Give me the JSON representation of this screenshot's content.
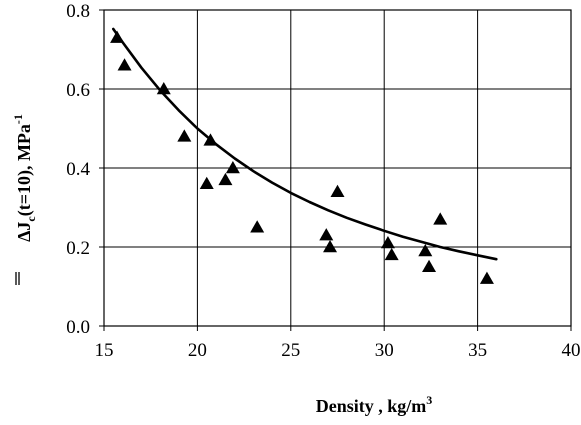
{
  "chart_data": {
    "type": "scatter",
    "title": "",
    "xlabel": {
      "main": "Density , kg/m",
      "superscript": "3"
    },
    "ylabel": {
      "prefix": "ΔJ",
      "subscript": "c",
      "middle": "(t=10), MPa",
      "superscript": "-1"
    },
    "xlim": [
      15,
      40
    ],
    "ylim": [
      0.0,
      0.8
    ],
    "xticks": [
      "15",
      "20",
      "25",
      "30",
      "35",
      "40"
    ],
    "yticks": [
      "0.0",
      "0.2",
      "0.4",
      "0.6",
      "0.8"
    ],
    "grid": true,
    "legend": "none",
    "marker": "filled-triangle",
    "color": "#000000",
    "points": [
      {
        "x": 15.7,
        "y": 0.73
      },
      {
        "x": 16.1,
        "y": 0.66
      },
      {
        "x": 18.2,
        "y": 0.6
      },
      {
        "x": 19.3,
        "y": 0.48
      },
      {
        "x": 20.7,
        "y": 0.47
      },
      {
        "x": 20.5,
        "y": 0.36
      },
      {
        "x": 21.5,
        "y": 0.37
      },
      {
        "x": 21.9,
        "y": 0.4
      },
      {
        "x": 23.2,
        "y": 0.25
      },
      {
        "x": 26.9,
        "y": 0.23
      },
      {
        "x": 27.1,
        "y": 0.2
      },
      {
        "x": 27.5,
        "y": 0.34
      },
      {
        "x": 30.2,
        "y": 0.21
      },
      {
        "x": 30.4,
        "y": 0.18
      },
      {
        "x": 32.2,
        "y": 0.19
      },
      {
        "x": 32.4,
        "y": 0.15
      },
      {
        "x": 33.0,
        "y": 0.27
      },
      {
        "x": 35.5,
        "y": 0.12
      }
    ],
    "trend": {
      "type": "power-fit",
      "x": [
        15.5,
        16,
        17,
        18,
        19,
        20,
        21,
        22,
        23,
        24,
        25,
        26,
        27,
        28,
        29,
        30,
        31,
        32,
        33,
        34,
        35,
        36
      ],
      "y": [
        0.752,
        0.718,
        0.654,
        0.597,
        0.546,
        0.5,
        0.46,
        0.424,
        0.392,
        0.363,
        0.337,
        0.314,
        0.293,
        0.274,
        0.257,
        0.241,
        0.226,
        0.213,
        0.2,
        0.189,
        0.179,
        0.169
      ]
    }
  }
}
